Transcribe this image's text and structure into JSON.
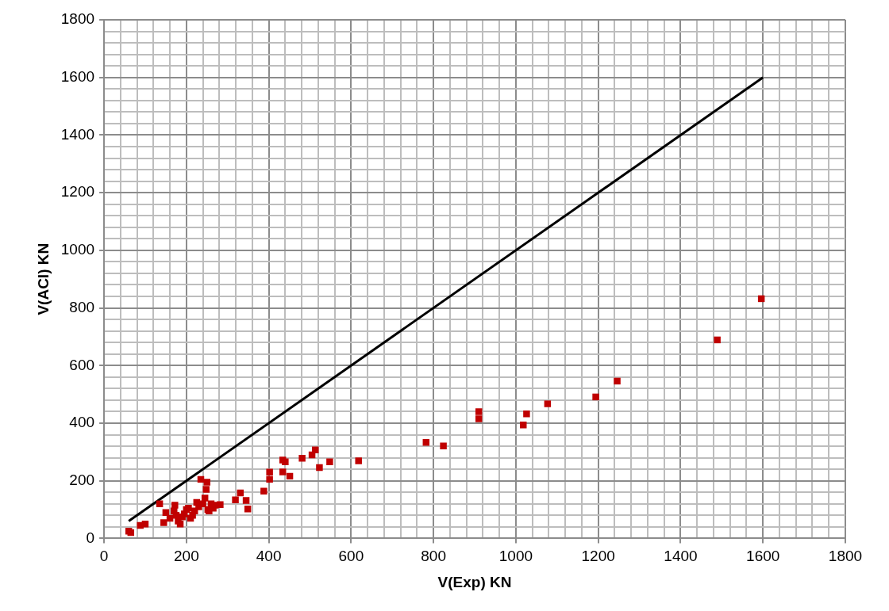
{
  "chart_data": {
    "type": "scatter",
    "xlabel": "V(Exp) KN",
    "ylabel": "V(ACI) KN",
    "xlim": [
      0,
      1800
    ],
    "ylim": [
      0,
      1800
    ],
    "xticks": [
      0,
      {
        "value": 40,
        "label": null
      },
      {
        "value": 80,
        "label": null
      },
      {
        "value": 120,
        "label": null
      },
      {
        "value": 160,
        "label": null
      },
      200,
      {
        "value": 240,
        "label": null
      },
      {
        "value": 280,
        "label": null
      },
      {
        "value": 320,
        "label": null
      },
      {
        "value": 360,
        "label": null
      },
      400,
      {
        "value": 440,
        "label": null
      },
      {
        "value": 480,
        "label": null
      },
      {
        "value": 520,
        "label": null
      },
      {
        "value": 560,
        "label": null
      },
      600,
      {
        "value": 640,
        "label": null
      },
      {
        "value": 680,
        "label": null
      },
      {
        "value": 720,
        "label": null
      },
      {
        "value": 760,
        "label": null
      },
      800,
      {
        "value": 840,
        "label": null
      },
      {
        "value": 880,
        "label": null
      },
      {
        "value": 920,
        "label": null
      },
      {
        "value": 960,
        "label": null
      },
      1000,
      {
        "value": 1040,
        "label": null
      },
      {
        "value": 1080,
        "label": null
      },
      {
        "value": 1120,
        "label": null
      },
      {
        "value": 1160,
        "label": null
      },
      1200,
      {
        "value": 1240,
        "label": null
      },
      {
        "value": 1280,
        "label": null
      },
      {
        "value": 1320,
        "label": null
      },
      {
        "value": 1360,
        "label": null
      },
      1400,
      {
        "value": 1440,
        "label": null
      },
      {
        "value": 1480,
        "label": null
      },
      {
        "value": 1520,
        "label": null
      },
      {
        "value": 1560,
        "label": null
      },
      1600,
      {
        "value": 1640,
        "label": null
      },
      {
        "value": 1680,
        "label": null
      },
      {
        "value": 1720,
        "label": null
      },
      {
        "value": 1760,
        "label": null
      },
      1800
    ],
    "yticks": [
      0,
      {
        "value": 40,
        "label": null
      },
      {
        "value": 80,
        "label": null
      },
      {
        "value": 120,
        "label": null
      },
      {
        "value": 160,
        "label": null
      },
      200,
      {
        "value": 240,
        "label": null
      },
      {
        "value": 280,
        "label": null
      },
      {
        "value": 320,
        "label": null
      },
      {
        "value": 360,
        "label": null
      },
      400,
      {
        "value": 440,
        "label": null
      },
      {
        "value": 480,
        "label": null
      },
      {
        "value": 520,
        "label": null
      },
      {
        "value": 560,
        "label": null
      },
      600,
      {
        "value": 640,
        "label": null
      },
      {
        "value": 680,
        "label": null
      },
      {
        "value": 720,
        "label": null
      },
      {
        "value": 760,
        "label": null
      },
      800,
      {
        "value": 840,
        "label": null
      },
      {
        "value": 880,
        "label": null
      },
      {
        "value": 920,
        "label": null
      },
      {
        "value": 960,
        "label": null
      },
      1000,
      {
        "value": 1040,
        "label": null
      },
      {
        "value": 1080,
        "label": null
      },
      {
        "value": 1120,
        "label": null
      },
      {
        "value": 1160,
        "label": null
      },
      1200,
      {
        "value": 1240,
        "label": null
      },
      {
        "value": 1280,
        "label": null
      },
      {
        "value": 1320,
        "label": null
      },
      {
        "value": 1360,
        "label": null
      },
      1400,
      {
        "value": 1440,
        "label": null
      },
      {
        "value": 1480,
        "label": null
      },
      {
        "value": 1520,
        "label": null
      },
      {
        "value": 1560,
        "label": null
      },
      1600,
      {
        "value": 1640,
        "label": null
      },
      {
        "value": 1680,
        "label": null
      },
      {
        "value": 1720,
        "label": null
      },
      {
        "value": 1760,
        "label": null
      },
      1800
    ],
    "grid": true,
    "legend": false,
    "marker": "square",
    "series": [
      {
        "type": "scatter",
        "color": "#c00000",
        "x": [
          60,
          65,
          88,
          100,
          135,
          145,
          150,
          160,
          170,
          172,
          175,
          180,
          185,
          190,
          195,
          200,
          205,
          210,
          215,
          220,
          225,
          230,
          235,
          240,
          245,
          248,
          250,
          252,
          255,
          260,
          265,
          270,
          282,
          319,
          331,
          345,
          349,
          388,
          402,
          402,
          434,
          440,
          434,
          451,
          481,
          505,
          513,
          523,
          548,
          618,
          782,
          824,
          910,
          910,
          1018,
          1026,
          1077,
          1194,
          1246,
          1489,
          1596
        ],
        "values": [
          25,
          20,
          45,
          50,
          120,
          55,
          90,
          70,
          95,
          115,
          80,
          60,
          50,
          75,
          85,
          100,
          105,
          70,
          80,
          95,
          125,
          110,
          205,
          120,
          140,
          170,
          195,
          100,
          95,
          120,
          105,
          115,
          117,
          134,
          158,
          132,
          102,
          164,
          205,
          230,
          272,
          266,
          231,
          216,
          278,
          290,
          307,
          246,
          266,
          269,
          333,
          321,
          440,
          415,
          394,
          432,
          467,
          491,
          546,
          689,
          832
        ]
      },
      {
        "type": "line",
        "color": "#000000",
        "marker": "none",
        "line_style": "solid",
        "x": [
          60,
          1600
        ],
        "values": [
          60,
          1600
        ]
      }
    ]
  }
}
